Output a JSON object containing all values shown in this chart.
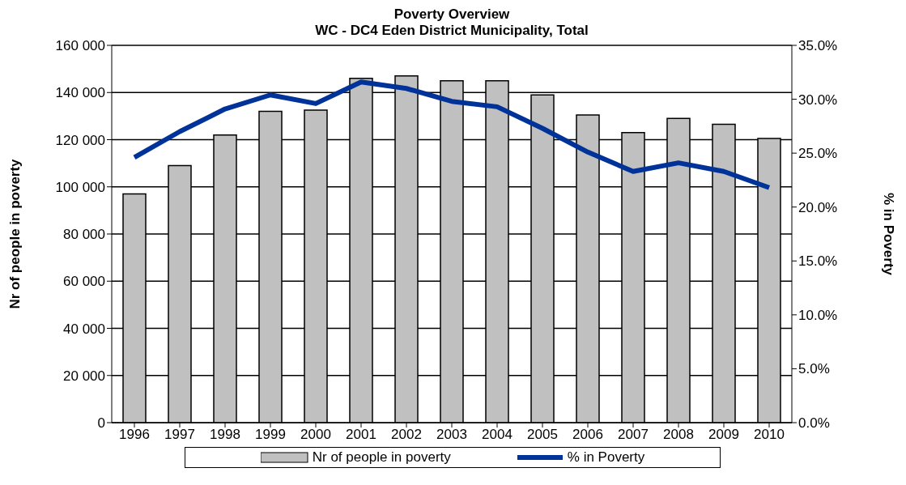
{
  "chart_data": {
    "type": "bar",
    "title": "Poverty Overview",
    "subtitle": "WC - DC4 Eden District Municipality, Total",
    "ylabel": "Nr of people in poverty",
    "y2label": "% in Poverty",
    "categories": [
      "1996",
      "1997",
      "1998",
      "1999",
      "2000",
      "2001",
      "2002",
      "2003",
      "2004",
      "2005",
      "2006",
      "2007",
      "2008",
      "2009",
      "2010"
    ],
    "series": [
      {
        "name": "Nr of people in poverty",
        "color": "#c0c0c0",
        "values": [
          97000,
          109000,
          122000,
          132000,
          132500,
          146000,
          147000,
          145000,
          145000,
          139000,
          130500,
          123000,
          129000,
          126500,
          120500
        ]
      },
      {
        "name": "% in Poverty",
        "type": "line",
        "axis": "y2",
        "color": "#003399",
        "values": [
          24.6,
          27.0,
          29.1,
          30.4,
          29.6,
          31.6,
          31.0,
          29.8,
          29.3,
          27.3,
          25.1,
          23.3,
          24.1,
          23.3,
          21.8
        ]
      }
    ],
    "ylim": [
      0,
      160000
    ],
    "yticks": [
      {
        "value": 0,
        "label": "0"
      },
      {
        "value": 20000,
        "label": "20 000"
      },
      {
        "value": 40000,
        "label": "40 000"
      },
      {
        "value": 60000,
        "label": "60 000"
      },
      {
        "value": 80000,
        "label": "80 000"
      },
      {
        "value": 100000,
        "label": "100 000"
      },
      {
        "value": 120000,
        "label": "120 000"
      },
      {
        "value": 140000,
        "label": "140 000"
      },
      {
        "value": 160000,
        "label": "160 000"
      }
    ],
    "y2lim": [
      0,
      35
    ],
    "y2ticks": [
      {
        "value": 0,
        "label": "0.0%"
      },
      {
        "value": 5,
        "label": "5.0%"
      },
      {
        "value": 10,
        "label": "10.0%"
      },
      {
        "value": 15,
        "label": "15.0%"
      },
      {
        "value": 20,
        "label": "20.0%"
      },
      {
        "value": 25,
        "label": "25.0%"
      },
      {
        "value": 30,
        "label": "30.0%"
      },
      {
        "value": 35,
        "label": "35.0%"
      }
    ],
    "grid": "y",
    "legend": "bottom",
    "marker": "none",
    "line_style": "solid"
  }
}
